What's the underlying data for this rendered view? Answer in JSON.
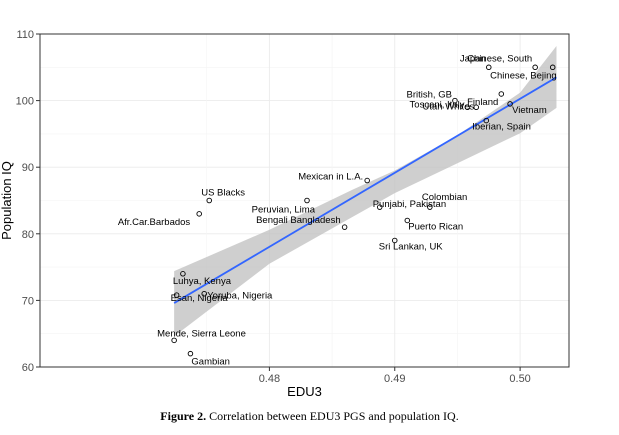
{
  "chart_data": {
    "type": "scatter",
    "xlabel": "EDU3",
    "ylabel": "Population IQ",
    "xlim": [
      0.4617,
      0.5039
    ],
    "ylim": [
      60,
      110
    ],
    "x_ticks": [
      "0.48",
      "0.49",
      "0.50"
    ],
    "y_ticks": [
      "60",
      "70",
      "80",
      "90",
      "100",
      "110"
    ],
    "x_tick_values": [
      0.48,
      0.49,
      0.5
    ],
    "y_tick_values": [
      60,
      70,
      80,
      90,
      100,
      110
    ],
    "grid": true,
    "regression": {
      "line_color": "#3366FF",
      "band_color": "#bfbfbf",
      "line": [
        [
          0.4724,
          69.6
        ],
        [
          0.5029,
          103.5
        ]
      ],
      "band_upper": [
        [
          0.4724,
          74.4
        ],
        [
          0.48,
          80.6
        ],
        [
          0.4866,
          86.6
        ],
        [
          0.49,
          89.5
        ],
        [
          0.495,
          94.8
        ],
        [
          0.5,
          101.2
        ],
        [
          0.5029,
          108.2
        ]
      ],
      "band_lower": [
        [
          0.4724,
          64.6
        ],
        [
          0.48,
          75.5
        ],
        [
          0.4866,
          82.5
        ],
        [
          0.49,
          86.1
        ],
        [
          0.495,
          90.6
        ],
        [
          0.5,
          95.1
        ],
        [
          0.5029,
          98.9
        ]
      ]
    },
    "points": [
      {
        "label": "Japan",
        "x": 0.4975,
        "y": 105
      },
      {
        "label": "Chinese, South",
        "x": 0.5012,
        "y": 105
      },
      {
        "label": "Chinese, Bejing",
        "x": 0.5026,
        "y": 105
      },
      {
        "label": "Finland",
        "x": 0.4985,
        "y": 101
      },
      {
        "label": "British, GB",
        "x": 0.4948,
        "y": 100
      },
      {
        "label": "Utah Whites",
        "x": 0.4965,
        "y": 99
      },
      {
        "label": "Vietnam",
        "x": 0.4992,
        "y": 99.5
      },
      {
        "label": "Toscani, Italy",
        "x": 0.4958,
        "y": 99
      },
      {
        "label": "Iberian, Spain",
        "x": 0.4973,
        "y": 97
      },
      {
        "label": "Mexican in L.A.",
        "x": 0.4878,
        "y": 88
      },
      {
        "label": "US Blacks",
        "x": 0.4752,
        "y": 85
      },
      {
        "label": "Peruvian, Lima",
        "x": 0.483,
        "y": 85
      },
      {
        "label": "Punjabi, Pakistan",
        "x": 0.4888,
        "y": 84
      },
      {
        "label": "Colombian",
        "x": 0.4928,
        "y": 84
      },
      {
        "label": "Afr.Car.Barbados",
        "x": 0.4744,
        "y": 83
      },
      {
        "label": "Bengali Bangladesh",
        "x": 0.486,
        "y": 81
      },
      {
        "label": "Puerto Rican",
        "x": 0.491,
        "y": 82
      },
      {
        "label": "Sri Lankan, UK",
        "x": 0.49,
        "y": 79
      },
      {
        "label": "Luhya, Kenya",
        "x": 0.4731,
        "y": 74
      },
      {
        "label": "Esan, Nigeria",
        "x": 0.4726,
        "y": 70.8
      },
      {
        "label": "Yoruba, Nigeria",
        "x": 0.4748,
        "y": 71
      },
      {
        "label": "Mende, Sierra Leone",
        "x": 0.4724,
        "y": 64
      },
      {
        "label": "Gambian",
        "x": 0.4737,
        "y": 62
      }
    ]
  },
  "caption": {
    "figure_label": "Figure 2.",
    "text": "Correlation between EDU3 PGS and population IQ."
  }
}
